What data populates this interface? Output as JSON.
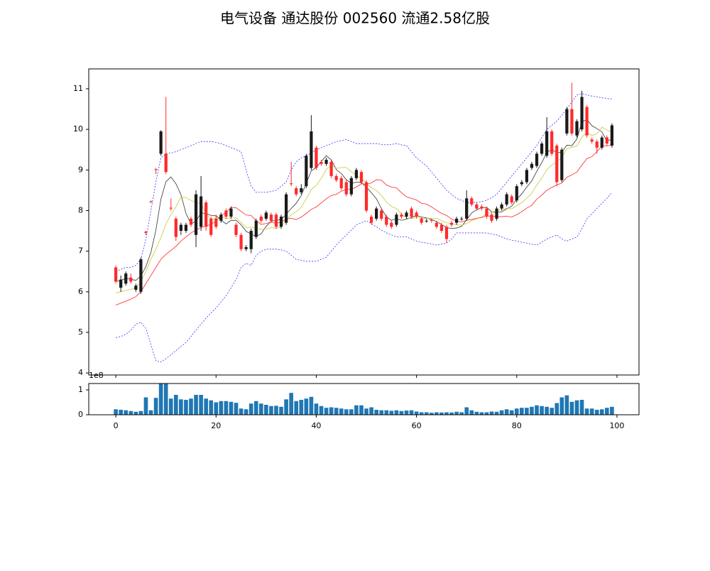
{
  "chart_data": {
    "type": "candlestick",
    "title": "电气设备 通达股份 002560 流通2.58亿股",
    "x": [
      0,
      1,
      2,
      3,
      4,
      5,
      6,
      7,
      8,
      9,
      10,
      11,
      12,
      13,
      14,
      15,
      16,
      17,
      18,
      19,
      20,
      21,
      22,
      23,
      24,
      25,
      26,
      27,
      28,
      29,
      30,
      31,
      32,
      33,
      34,
      35,
      36,
      37,
      38,
      39,
      40,
      41,
      42,
      43,
      44,
      45,
      46,
      47,
      48,
      49,
      50,
      51,
      52,
      53,
      54,
      55,
      56,
      57,
      58,
      59,
      60,
      61,
      62,
      63,
      64,
      65,
      66,
      67,
      68,
      69,
      70,
      71,
      72,
      73,
      74,
      75,
      76,
      77,
      78,
      79,
      80,
      81,
      82,
      83,
      84,
      85,
      86,
      87,
      88,
      89,
      90,
      91,
      92,
      93,
      94,
      95,
      96,
      97,
      98,
      99
    ],
    "open": [
      6.6,
      6.1,
      6.2,
      6.35,
      6.05,
      6.0,
      7.48,
      8.22,
      9.02,
      9.4,
      9.4,
      8.07,
      7.8,
      7.5,
      7.5,
      7.8,
      7.4,
      7.6,
      8.2,
      7.8,
      7.8,
      7.75,
      8.0,
      7.85,
      7.65,
      7.4,
      7.05,
      7.05,
      7.35,
      7.85,
      7.8,
      7.9,
      7.9,
      7.6,
      7.7,
      8.67,
      8.55,
      8.45,
      8.6,
      9.05,
      9.55,
      9.2,
      9.15,
      9.2,
      8.85,
      8.8,
      8.7,
      8.4,
      8.8,
      8.95,
      8.7,
      7.85,
      7.8,
      8.0,
      7.85,
      7.7,
      7.65,
      7.9,
      7.85,
      8.05,
      7.95,
      7.8,
      7.74,
      7.77,
      7.7,
      7.65,
      7.6,
      7.7,
      7.7,
      7.79,
      7.8,
      8.3,
      8.15,
      8.1,
      8.05,
      7.9,
      7.8,
      8.05,
      8.15,
      8.35,
      8.25,
      8.65,
      8.7,
      9.05,
      9.1,
      9.4,
      9.35,
      9.95,
      9.6,
      8.75,
      9.9,
      10.5,
      9.85,
      10.0,
      10.55,
      9.75,
      9.7,
      9.55,
      9.8,
      9.6
    ],
    "high": [
      6.65,
      6.4,
      6.5,
      6.45,
      6.2,
      6.85,
      7.5,
      8.25,
      9.05,
      9.98,
      10.8,
      8.3,
      7.85,
      7.7,
      7.7,
      7.85,
      8.5,
      8.85,
      8.25,
      7.85,
      7.9,
      7.95,
      8.05,
      8.1,
      7.7,
      7.45,
      7.15,
      7.55,
      7.8,
      7.9,
      8.0,
      7.95,
      7.95,
      7.9,
      8.45,
      9.2,
      8.6,
      8.65,
      9.4,
      10.35,
      9.6,
      9.25,
      9.3,
      9.25,
      8.9,
      8.85,
      8.75,
      8.85,
      9.05,
      9.0,
      8.75,
      7.9,
      8.1,
      8.05,
      7.9,
      7.75,
      7.95,
      7.95,
      8.0,
      8.1,
      8.0,
      7.85,
      7.8,
      7.8,
      7.75,
      7.7,
      7.65,
      7.75,
      7.85,
      7.85,
      8.5,
      8.35,
      8.2,
      8.15,
      8.1,
      7.95,
      8.1,
      8.2,
      8.45,
      8.4,
      8.65,
      8.75,
      9.05,
      9.2,
      9.45,
      9.7,
      10.3,
      10.0,
      9.65,
      9.55,
      10.55,
      11.15,
      10.25,
      10.95,
      10.6,
      9.8,
      9.75,
      9.85,
      9.85,
      10.15
    ],
    "low": [
      6.2,
      6.0,
      6.15,
      6.2,
      6.0,
      5.95,
      7.4,
      8.2,
      8.9,
      9.35,
      8.9,
      8.0,
      7.25,
      7.4,
      7.45,
      7.6,
      7.1,
      7.5,
      7.5,
      7.35,
      7.55,
      7.7,
      7.8,
      7.8,
      7.35,
      7.0,
      7.0,
      6.95,
      7.3,
      7.7,
      7.75,
      7.7,
      7.55,
      7.55,
      7.65,
      8.6,
      8.35,
      8.4,
      8.55,
      9.0,
      9.0,
      9.1,
      9.1,
      8.8,
      8.7,
      8.5,
      8.35,
      8.35,
      8.75,
      8.65,
      7.95,
      7.65,
      7.75,
      7.75,
      7.6,
      7.55,
      7.6,
      7.8,
      7.8,
      7.8,
      7.8,
      7.65,
      7.7,
      7.7,
      7.55,
      7.45,
      7.2,
      7.6,
      7.65,
      7.75,
      7.75,
      8.1,
      8.0,
      8.0,
      7.8,
      7.7,
      7.75,
      8.0,
      8.1,
      8.15,
      8.2,
      8.6,
      8.65,
      9.0,
      9.05,
      9.35,
      9.3,
      9.35,
      8.6,
      8.7,
      9.85,
      9.85,
      9.8,
      9.95,
      9.8,
      9.65,
      9.4,
      9.5,
      9.6,
      9.55
    ],
    "close": [
      6.25,
      6.3,
      6.45,
      6.25,
      6.15,
      6.8,
      7.45,
      8.2,
      9.0,
      9.95,
      8.95,
      8.05,
      7.35,
      7.65,
      7.65,
      7.65,
      8.4,
      8.35,
      7.6,
      7.4,
      7.6,
      7.9,
      7.85,
      8.05,
      7.4,
      7.05,
      7.1,
      7.5,
      7.75,
      7.75,
      7.95,
      7.75,
      7.6,
      7.85,
      8.4,
      8.65,
      8.4,
      8.55,
      9.35,
      9.95,
      9.05,
      9.15,
      9.25,
      8.85,
      8.75,
      8.55,
      8.4,
      8.8,
      9.0,
      8.7,
      8.0,
      7.7,
      8.05,
      7.8,
      7.65,
      7.6,
      7.9,
      7.85,
      7.95,
      7.85,
      7.85,
      7.7,
      7.75,
      7.75,
      7.6,
      7.5,
      7.3,
      7.65,
      7.8,
      7.8,
      8.3,
      8.15,
      8.05,
      8.05,
      7.85,
      7.75,
      8.05,
      8.15,
      8.4,
      8.2,
      8.6,
      8.7,
      9.0,
      9.15,
      9.4,
      9.65,
      9.95,
      9.4,
      8.7,
      9.5,
      10.5,
      9.9,
      10.2,
      10.8,
      9.85,
      9.7,
      9.55,
      9.8,
      9.65,
      10.1
    ],
    "up_color": "#1a1a1a",
    "down_color": "#ff2a2a",
    "lines": [
      {
        "color": "#333333",
        "dashed": false,
        "values": [
          6.25,
          6.28,
          6.33,
          6.31,
          6.28,
          6.39,
          6.62,
          6.97,
          7.52,
          8.28,
          8.71,
          8.83,
          8.66,
          8.39,
          7.93,
          7.67,
          7.74,
          7.94,
          7.93,
          7.88,
          7.87,
          7.77,
          7.67,
          7.76,
          7.76,
          7.65,
          7.49,
          7.42,
          7.36,
          7.43,
          7.61,
          7.74,
          7.76,
          7.78,
          7.91,
          8.05,
          8.18,
          8.37,
          8.67,
          8.98,
          9.06,
          9.21,
          9.35,
          9.25,
          9.01,
          8.91,
          8.76,
          8.67,
          8.7,
          8.69,
          8.58,
          8.44,
          8.29,
          8.05,
          7.84,
          7.76,
          7.8,
          7.76,
          7.79,
          7.83,
          7.88,
          7.84,
          7.82,
          7.78,
          7.73,
          7.66,
          7.58,
          7.56,
          7.57,
          7.61,
          7.77,
          7.94,
          8.02,
          8.07,
          8.08,
          7.97,
          7.95,
          7.97,
          8.04,
          8.11,
          8.28,
          8.41,
          8.58,
          8.73,
          8.97,
          9.18,
          9.43,
          9.51,
          9.42,
          9.44,
          9.61,
          9.6,
          9.76,
          10.18,
          10.25,
          10.09,
          10.02,
          9.94,
          9.71,
          9.76
        ]
      },
      {
        "color": "#c8c832",
        "dashed": false,
        "values": [
          5.97,
          6.0,
          6.03,
          6.06,
          6.1,
          6.25,
          6.5,
          6.8,
          7.05,
          7.34,
          7.67,
          7.9,
          8.09,
          8.34,
          8.32,
          8.25,
          8.2,
          8.17,
          7.93,
          7.78,
          7.81,
          7.86,
          7.8,
          7.82,
          7.82,
          7.71,
          7.58,
          7.59,
          7.56,
          7.54,
          7.55,
          7.58,
          7.56,
          7.61,
          7.76,
          7.9,
          7.97,
          8.08,
          8.29,
          8.52,
          8.62,
          8.79,
          9.01,
          9.12,
          9.04,
          9.06,
          9.06,
          8.96,
          8.86,
          8.8,
          8.67,
          8.56,
          8.5,
          8.37,
          8.21,
          8.1,
          8.05,
          7.91,
          7.82,
          7.8,
          7.84,
          7.8,
          7.81,
          7.81,
          7.81,
          7.75,
          7.7,
          7.67,
          7.65,
          7.64,
          7.68,
          7.75,
          7.8,
          7.84,
          7.93,
          7.96,
          7.99,
          8.02,
          8.06,
          8.04,
          8.12,
          8.19,
          8.31,
          8.42,
          8.63,
          8.8,
          9.01,
          9.12,
          9.2,
          9.31,
          9.52,
          9.56,
          9.59,
          9.81,
          9.93,
          9.85,
          9.89,
          10.06,
          9.98,
          9.93
        ]
      },
      {
        "color": "#ff2020",
        "dashed": false,
        "values": [
          5.67,
          5.72,
          5.77,
          5.82,
          5.88,
          6.0,
          6.2,
          6.4,
          6.6,
          6.8,
          6.92,
          7.02,
          7.12,
          7.25,
          7.35,
          7.45,
          7.52,
          7.58,
          7.62,
          7.66,
          7.74,
          7.88,
          7.95,
          8.08,
          8.07,
          7.98,
          7.89,
          7.88,
          7.75,
          7.66,
          7.68,
          7.72,
          7.68,
          7.72,
          7.79,
          7.81,
          7.78,
          7.84,
          7.93,
          8.03,
          8.09,
          8.19,
          8.29,
          8.37,
          8.4,
          8.48,
          8.52,
          8.52,
          8.58,
          8.66,
          8.65,
          8.68,
          8.76,
          8.75,
          8.63,
          8.58,
          8.56,
          8.44,
          8.34,
          8.3,
          8.26,
          8.18,
          8.16,
          8.09,
          8.01,
          7.93,
          7.88,
          7.79,
          7.74,
          7.72,
          7.76,
          7.78,
          7.81,
          7.83,
          7.87,
          7.86,
          7.85,
          7.85,
          7.86,
          7.84,
          7.9,
          7.97,
          8.06,
          8.13,
          8.28,
          8.38,
          8.5,
          8.57,
          8.63,
          8.68,
          8.82,
          8.88,
          8.95,
          9.12,
          9.28,
          9.33,
          9.45,
          9.59,
          9.59,
          9.62
        ]
      },
      {
        "color": "#3333ff",
        "dashed": true,
        "values": [
          6.5,
          6.55,
          6.6,
          6.6,
          6.65,
          6.8,
          7.3,
          8.0,
          8.7,
          9.3,
          9.4,
          9.42,
          9.45,
          9.5,
          9.55,
          9.6,
          9.65,
          9.7,
          9.7,
          9.7,
          9.68,
          9.65,
          9.6,
          9.55,
          9.5,
          9.45,
          9.0,
          8.6,
          8.45,
          8.45,
          8.45,
          8.47,
          8.5,
          8.6,
          8.7,
          9.0,
          9.2,
          9.3,
          9.35,
          9.42,
          9.5,
          9.55,
          9.6,
          9.65,
          9.7,
          9.72,
          9.75,
          9.7,
          9.65,
          9.65,
          9.65,
          9.65,
          9.65,
          9.63,
          9.62,
          9.63,
          9.65,
          9.62,
          9.6,
          9.45,
          9.3,
          9.2,
          9.1,
          8.95,
          8.8,
          8.65,
          8.5,
          8.4,
          8.3,
          8.25,
          8.2,
          8.2,
          8.2,
          8.22,
          8.25,
          8.32,
          8.4,
          8.55,
          8.7,
          8.85,
          9.0,
          9.15,
          9.3,
          9.45,
          9.6,
          9.8,
          10.0,
          10.1,
          10.2,
          10.35,
          10.5,
          10.68,
          10.85,
          10.88,
          10.85,
          10.82,
          10.8,
          10.78,
          10.76,
          10.75
        ]
      },
      {
        "color": "#3333ff",
        "dashed": true,
        "values": [
          4.87,
          4.9,
          4.95,
          5.05,
          5.2,
          5.25,
          5.1,
          4.7,
          4.3,
          4.27,
          4.35,
          4.45,
          4.55,
          4.65,
          4.75,
          4.9,
          5.05,
          5.2,
          5.35,
          5.48,
          5.6,
          5.75,
          5.9,
          6.1,
          6.3,
          6.6,
          6.7,
          6.65,
          6.9,
          7.0,
          7.05,
          7.05,
          7.05,
          7.03,
          7.0,
          6.9,
          6.8,
          6.77,
          6.75,
          6.75,
          6.75,
          6.8,
          6.85,
          7.0,
          7.15,
          7.28,
          7.4,
          7.52,
          7.65,
          7.7,
          7.75,
          7.68,
          7.6,
          7.52,
          7.45,
          7.4,
          7.35,
          7.35,
          7.35,
          7.3,
          7.25,
          7.22,
          7.2,
          7.18,
          7.15,
          7.17,
          7.2,
          7.3,
          7.45,
          7.45,
          7.45,
          7.45,
          7.45,
          7.45,
          7.45,
          7.42,
          7.4,
          7.35,
          7.3,
          7.27,
          7.25,
          7.22,
          7.2,
          7.17,
          7.15,
          7.22,
          7.3,
          7.35,
          7.4,
          7.3,
          7.25,
          7.3,
          7.35,
          7.55,
          7.8,
          7.92,
          8.05,
          8.18,
          8.3,
          8.45
        ]
      }
    ],
    "xlim": [
      -5.4,
      104.4
    ],
    "xticks": [
      0,
      20,
      40,
      60,
      80,
      100
    ],
    "ylim": [
      3.95,
      11.49
    ],
    "yticks": [
      4,
      5,
      6,
      7,
      8,
      9,
      10,
      11
    ],
    "volume": {
      "color": "#1f77b4",
      "values": [
        22000000,
        20000000,
        18000000,
        15000000,
        12000000,
        15000000,
        70000000,
        18000000,
        68000000,
        125000000,
        125000000,
        65000000,
        80000000,
        62000000,
        60000000,
        65000000,
        80000000,
        80000000,
        65000000,
        58000000,
        50000000,
        55000000,
        55000000,
        52000000,
        48000000,
        25000000,
        22000000,
        45000000,
        55000000,
        45000000,
        40000000,
        35000000,
        36000000,
        32000000,
        62000000,
        88000000,
        55000000,
        60000000,
        65000000,
        72000000,
        45000000,
        35000000,
        28000000,
        30000000,
        28000000,
        25000000,
        22000000,
        22000000,
        38000000,
        38000000,
        25000000,
        30000000,
        20000000,
        18000000,
        18000000,
        16000000,
        18000000,
        15000000,
        17000000,
        18000000,
        13000000,
        10000000,
        10000000,
        8000000,
        10000000,
        9000000,
        10000000,
        9000000,
        12000000,
        10000000,
        30000000,
        18000000,
        12000000,
        10000000,
        10000000,
        13000000,
        12000000,
        18000000,
        22000000,
        18000000,
        25000000,
        28000000,
        28000000,
        32000000,
        38000000,
        35000000,
        32000000,
        28000000,
        47000000,
        70000000,
        78000000,
        52000000,
        58000000,
        60000000,
        25000000,
        25000000,
        20000000,
        22000000,
        28000000,
        32000000
      ],
      "ylim": [
        0,
        125700000
      ],
      "yticks": [
        0,
        {
          "value": 100000000,
          "label": "1"
        }
      ],
      "offset_label": "1e8"
    }
  }
}
